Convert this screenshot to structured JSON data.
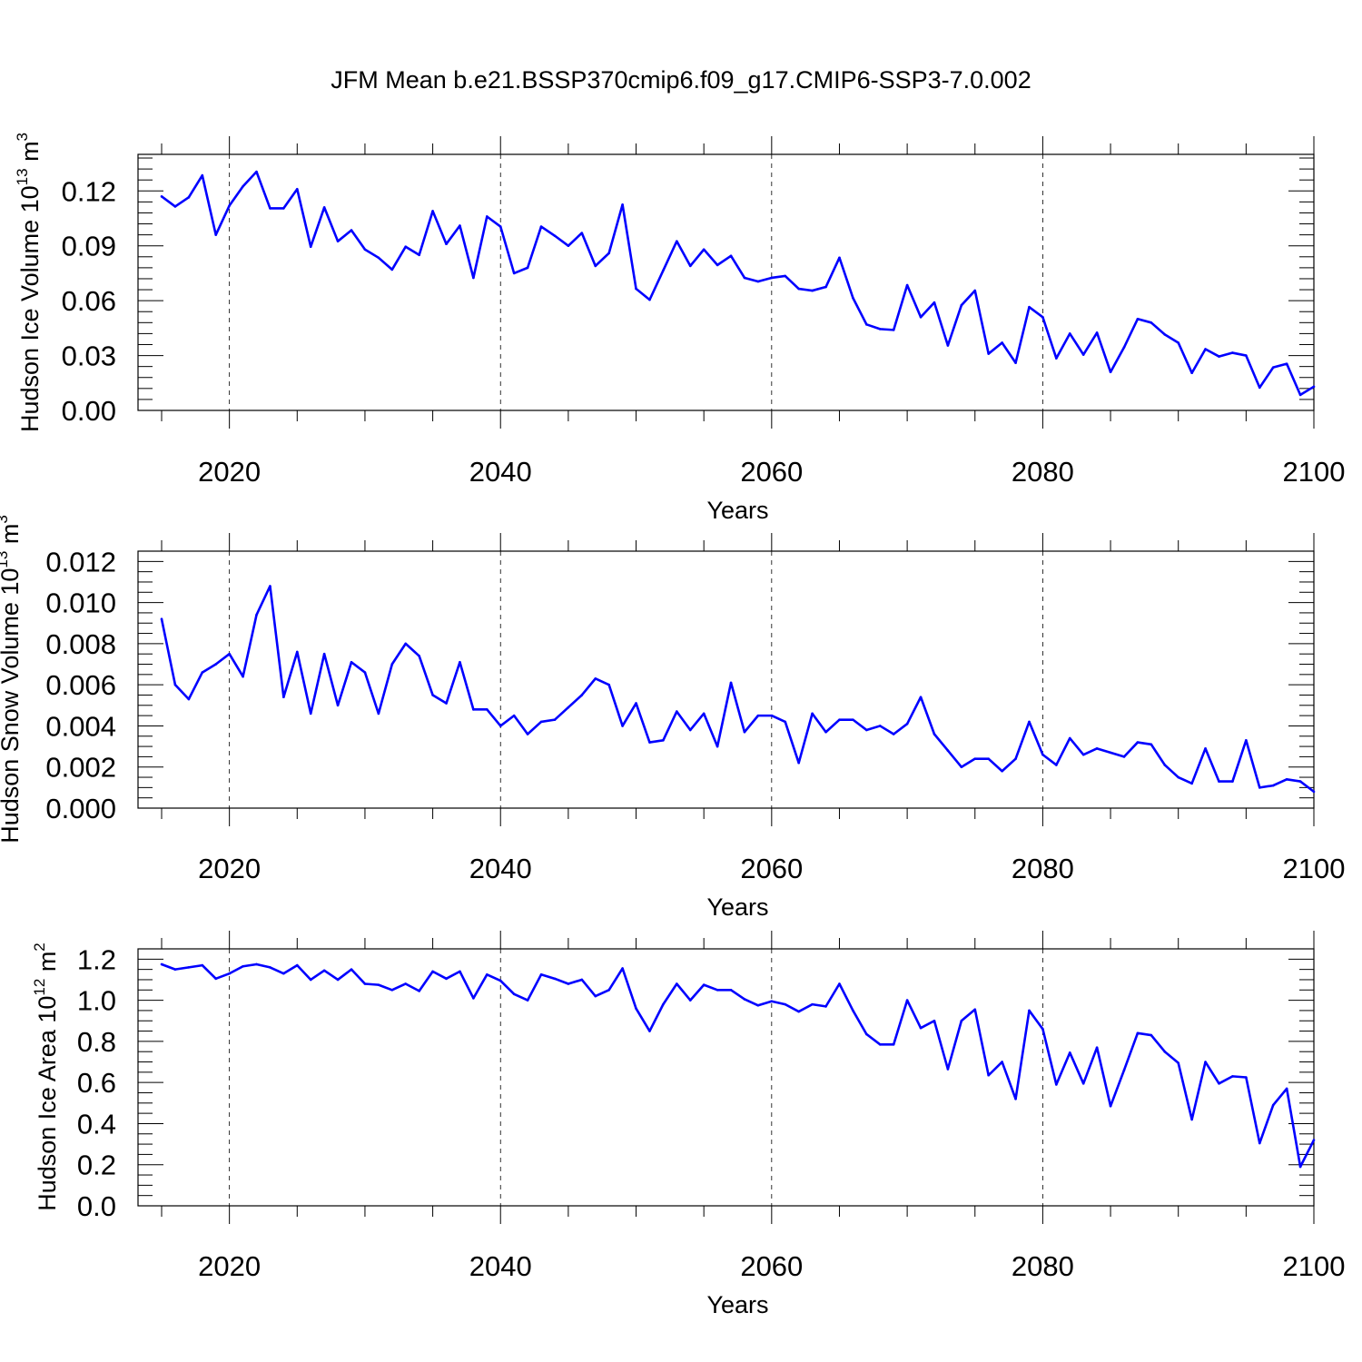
{
  "title": "JFM Mean b.e21.BSSP370cmip6.f09_g17.CMIP6-SSP3-7.0.002",
  "colors": {
    "line": "#0000ff",
    "axis": "#000000",
    "background": "#ffffff"
  },
  "chart_data": [
    {
      "type": "line",
      "ylabel_main": "Hudson Ice Volume 10",
      "ylabel_exp": "13",
      "ylabel_unit": " m",
      "ylabel_unit_exp": "3",
      "xlabel": "Years",
      "xlim": [
        2015,
        2100
      ],
      "ylim": [
        0,
        0.14
      ],
      "xticks": [
        2020,
        2040,
        2060,
        2080,
        2100
      ],
      "xtick_labels": [
        "2020",
        "2040",
        "2060",
        "2080",
        "2100"
      ],
      "yticks": [
        0,
        0.03,
        0.06,
        0.09,
        0.12
      ],
      "ytick_labels": [
        "0.00",
        "0.03",
        "0.06",
        "0.09",
        "0.12"
      ],
      "y_minor_step": 0.006,
      "grid": "vertical dashed at major x ticks",
      "series": [
        {
          "x": [
            2015,
            2016,
            2017,
            2018,
            2019,
            2020,
            2021,
            2022,
            2023,
            2024,
            2025,
            2026,
            2027,
            2028,
            2029,
            2030,
            2031,
            2032,
            2033,
            2034,
            2035,
            2036,
            2037,
            2038,
            2039,
            2040,
            2041,
            2042,
            2043,
            2044,
            2045,
            2046,
            2047,
            2048,
            2049,
            2050,
            2051,
            2052,
            2053,
            2054,
            2055,
            2056,
            2057,
            2058,
            2059,
            2060,
            2061,
            2062,
            2063,
            2064,
            2065,
            2066,
            2067,
            2068,
            2069,
            2070,
            2071,
            2072,
            2073,
            2074,
            2075,
            2076,
            2077,
            2078,
            2079,
            2080,
            2081,
            2082,
            2083,
            2084,
            2085,
            2086,
            2087,
            2088,
            2089,
            2090,
            2091,
            2092,
            2093,
            2094,
            2095,
            2096,
            2097,
            2098,
            2099,
            2100
          ],
          "values": [
            0.117,
            0.1115,
            0.1165,
            0.1285,
            0.096,
            0.112,
            0.1225,
            0.1305,
            0.1105,
            0.1105,
            0.121,
            0.0895,
            0.111,
            0.0925,
            0.0985,
            0.088,
            0.0835,
            0.077,
            0.0895,
            0.085,
            0.109,
            0.091,
            0.101,
            0.0725,
            0.106,
            0.1005,
            0.075,
            0.078,
            0.1005,
            0.0955,
            0.09,
            0.097,
            0.079,
            0.086,
            0.1125,
            0.0665,
            0.0605,
            0.0765,
            0.0925,
            0.079,
            0.088,
            0.0795,
            0.0845,
            0.0725,
            0.0705,
            0.0725,
            0.0735,
            0.0665,
            0.0655,
            0.0675,
            0.0835,
            0.0615,
            0.047,
            0.0445,
            0.044,
            0.0685,
            0.051,
            0.059,
            0.0355,
            0.0575,
            0.0655,
            0.031,
            0.037,
            0.026,
            0.0565,
            0.051,
            0.0285,
            0.042,
            0.0305,
            0.0425,
            0.021,
            0.0345,
            0.05,
            0.048,
            0.0415,
            0.037,
            0.0205,
            0.0335,
            0.0295,
            0.0315,
            0.03,
            0.0125,
            0.0235,
            0.0255,
            0.0085,
            0.013
          ]
        }
      ]
    },
    {
      "type": "line",
      "ylabel_main": "Hudson Snow Volume 10",
      "ylabel_exp": "13",
      "ylabel_unit": " m",
      "ylabel_unit_exp": "3",
      "xlabel": "Years",
      "xlim": [
        2015,
        2100
      ],
      "ylim": [
        0,
        0.0125
      ],
      "xticks": [
        2020,
        2040,
        2060,
        2080,
        2100
      ],
      "xtick_labels": [
        "2020",
        "2040",
        "2060",
        "2080",
        "2100"
      ],
      "yticks": [
        0,
        0.002,
        0.004,
        0.006,
        0.008,
        0.01,
        0.012
      ],
      "ytick_labels": [
        "0.000",
        "0.002",
        "0.004",
        "0.006",
        "0.008",
        "0.010",
        "0.012"
      ],
      "y_minor_step": 0.0005,
      "grid": "vertical dashed at major x ticks",
      "series": [
        {
          "x": [
            2015,
            2016,
            2017,
            2018,
            2019,
            2020,
            2021,
            2022,
            2023,
            2024,
            2025,
            2026,
            2027,
            2028,
            2029,
            2030,
            2031,
            2032,
            2033,
            2034,
            2035,
            2036,
            2037,
            2038,
            2039,
            2040,
            2041,
            2042,
            2043,
            2044,
            2045,
            2046,
            2047,
            2048,
            2049,
            2050,
            2051,
            2052,
            2053,
            2054,
            2055,
            2056,
            2057,
            2058,
            2059,
            2060,
            2061,
            2062,
            2063,
            2064,
            2065,
            2066,
            2067,
            2068,
            2069,
            2070,
            2071,
            2072,
            2073,
            2074,
            2075,
            2076,
            2077,
            2078,
            2079,
            2080,
            2081,
            2082,
            2083,
            2084,
            2085,
            2086,
            2087,
            2088,
            2089,
            2090,
            2091,
            2092,
            2093,
            2094,
            2095,
            2096,
            2097,
            2098,
            2099,
            2100
          ],
          "values": [
            0.0092,
            0.006,
            0.0053,
            0.0066,
            0.007,
            0.0075,
            0.0064,
            0.0094,
            0.0108,
            0.0054,
            0.0076,
            0.0046,
            0.0075,
            0.005,
            0.0071,
            0.0066,
            0.0046,
            0.007,
            0.008,
            0.0074,
            0.0055,
            0.0051,
            0.0071,
            0.0048,
            0.0048,
            0.004,
            0.0045,
            0.0036,
            0.0042,
            0.0043,
            0.0049,
            0.0055,
            0.0063,
            0.006,
            0.004,
            0.0051,
            0.0032,
            0.0033,
            0.0047,
            0.0038,
            0.0046,
            0.003,
            0.0061,
            0.0037,
            0.0045,
            0.0045,
            0.0042,
            0.0022,
            0.0046,
            0.0037,
            0.0043,
            0.0043,
            0.0038,
            0.004,
            0.0036,
            0.0041,
            0.0054,
            0.0036,
            0.0028,
            0.002,
            0.0024,
            0.0024,
            0.0018,
            0.0024,
            0.0042,
            0.0026,
            0.0021,
            0.0034,
            0.0026,
            0.0029,
            0.0027,
            0.0025,
            0.0032,
            0.0031,
            0.0021,
            0.0015,
            0.0012,
            0.0029,
            0.0013,
            0.0013,
            0.0033,
            0.001,
            0.0011,
            0.0014,
            0.0013,
            0.0008
          ]
        }
      ]
    },
    {
      "type": "line",
      "ylabel_main": "Hudson Ice Area 10",
      "ylabel_exp": "12",
      "ylabel_unit": " m",
      "ylabel_unit_exp": "2",
      "xlabel": "Years",
      "xlim": [
        2015,
        2100
      ],
      "ylim": [
        0,
        1.25
      ],
      "xticks": [
        2020,
        2040,
        2060,
        2080,
        2100
      ],
      "xtick_labels": [
        "2020",
        "2040",
        "2060",
        "2080",
        "2100"
      ],
      "yticks": [
        0,
        0.2,
        0.4,
        0.6,
        0.8,
        1.0,
        1.2
      ],
      "ytick_labels": [
        "0.0",
        "0.2",
        "0.4",
        "0.6",
        "0.8",
        "1.0",
        "1.2"
      ],
      "y_minor_step": 0.05,
      "grid": "vertical dashed at major x ticks",
      "series": [
        {
          "x": [
            2015,
            2016,
            2017,
            2018,
            2019,
            2020,
            2021,
            2022,
            2023,
            2024,
            2025,
            2026,
            2027,
            2028,
            2029,
            2030,
            2031,
            2032,
            2033,
            2034,
            2035,
            2036,
            2037,
            2038,
            2039,
            2040,
            2041,
            2042,
            2043,
            2044,
            2045,
            2046,
            2047,
            2048,
            2049,
            2050,
            2051,
            2052,
            2053,
            2054,
            2055,
            2056,
            2057,
            2058,
            2059,
            2060,
            2061,
            2062,
            2063,
            2064,
            2065,
            2066,
            2067,
            2068,
            2069,
            2070,
            2071,
            2072,
            2073,
            2074,
            2075,
            2076,
            2077,
            2078,
            2079,
            2080,
            2081,
            2082,
            2083,
            2084,
            2085,
            2086,
            2087,
            2088,
            2089,
            2090,
            2091,
            2092,
            2093,
            2094,
            2095,
            2096,
            2097,
            2098,
            2099,
            2100
          ],
          "values": [
            1.175,
            1.15,
            1.16,
            1.17,
            1.105,
            1.13,
            1.165,
            1.175,
            1.16,
            1.13,
            1.17,
            1.1,
            1.145,
            1.1,
            1.15,
            1.08,
            1.075,
            1.05,
            1.08,
            1.045,
            1.14,
            1.105,
            1.14,
            1.01,
            1.125,
            1.095,
            1.03,
            1.0,
            1.125,
            1.105,
            1.08,
            1.1,
            1.02,
            1.05,
            1.155,
            0.96,
            0.85,
            0.98,
            1.08,
            1.0,
            1.075,
            1.05,
            1.05,
            1.005,
            0.975,
            0.995,
            0.98,
            0.945,
            0.98,
            0.97,
            1.08,
            0.95,
            0.835,
            0.785,
            0.785,
            1.0,
            0.865,
            0.9,
            0.665,
            0.9,
            0.955,
            0.635,
            0.7,
            0.52,
            0.95,
            0.86,
            0.59,
            0.745,
            0.595,
            0.77,
            0.485,
            0.66,
            0.84,
            0.83,
            0.75,
            0.695,
            0.42,
            0.7,
            0.595,
            0.63,
            0.625,
            0.305,
            0.49,
            0.57,
            0.19,
            0.32
          ]
        }
      ]
    }
  ]
}
